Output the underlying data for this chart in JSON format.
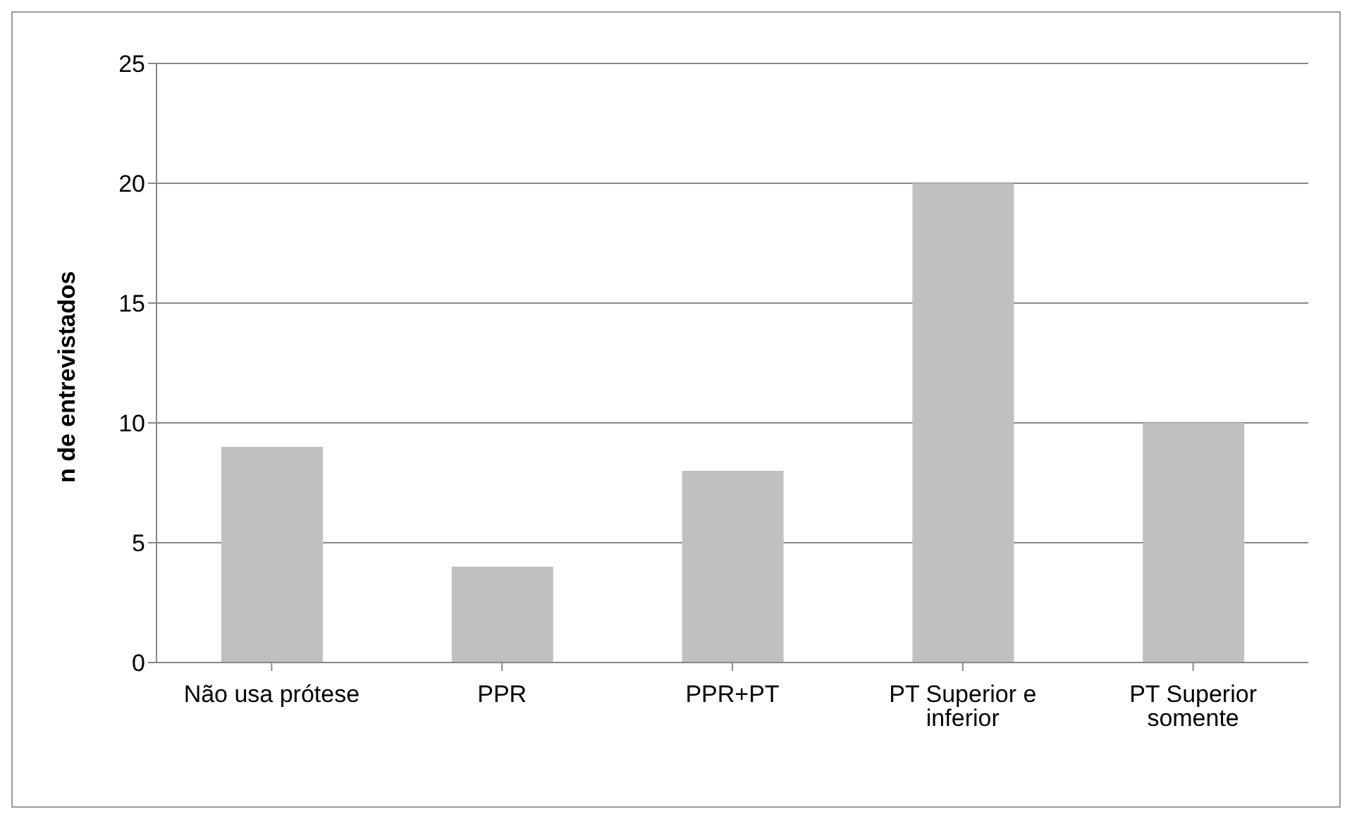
{
  "chart_data": {
    "type": "bar",
    "ylabel": "n de entrevistados",
    "categories": [
      "Não usa prótese",
      "PPR",
      "PPR+PT",
      "PT Superior e inferior",
      "PT Superior somente"
    ],
    "values": [
      9,
      4,
      8,
      20,
      10
    ],
    "color": "#c0c0c0",
    "ylim": [
      0,
      25
    ],
    "yticks": [
      0,
      5,
      10,
      15,
      20,
      25
    ],
    "grid": "y",
    "legend": false
  }
}
